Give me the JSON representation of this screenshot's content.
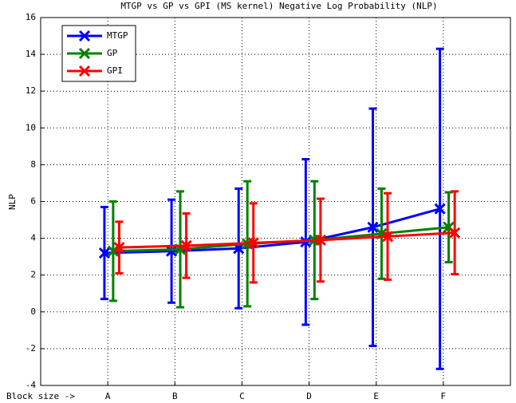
{
  "chart_data": {
    "type": "errorbar-line",
    "title": "MTGP vs GP vs GPI (MS kernel) Negative Log Probability (NLP)",
    "y_label": "NLP",
    "xlim": [
      0,
      7
    ],
    "xticks": [
      {
        "value": 0,
        "label": "Block size ->"
      },
      {
        "value": 1,
        "label": "A"
      },
      {
        "value": 2,
        "label": "B"
      },
      {
        "value": 3,
        "label": "C"
      },
      {
        "value": 4,
        "label": "D"
      },
      {
        "value": 5,
        "label": "E"
      },
      {
        "value": 6,
        "label": "F"
      }
    ],
    "ylim": [
      -4,
      16
    ],
    "yticks": [
      -4,
      -2,
      0,
      2,
      4,
      6,
      8,
      10,
      12,
      14,
      16
    ],
    "grid": true,
    "legend": "upper-left",
    "series": [
      {
        "name": "MTGP",
        "color": "#0000ff",
        "x": [
          0.95,
          1.95,
          2.95,
          3.95,
          4.95,
          5.95
        ],
        "values": [
          3.2,
          3.3,
          3.45,
          3.8,
          4.6,
          5.6
        ],
        "errors": [
          2.5,
          2.8,
          3.25,
          4.5,
          6.45,
          8.7
        ]
      },
      {
        "name": "GP",
        "color": "#008000",
        "x": [
          1.08,
          2.08,
          3.08,
          4.08,
          5.08,
          6.08
        ],
        "values": [
          3.3,
          3.4,
          3.7,
          3.9,
          4.25,
          4.6
        ],
        "errors": [
          2.7,
          3.15,
          3.4,
          3.2,
          2.45,
          1.9
        ]
      },
      {
        "name": "GPI",
        "color": "#ff0000",
        "x": [
          1.17,
          2.17,
          3.17,
          4.17,
          5.17,
          6.17
        ],
        "values": [
          3.5,
          3.6,
          3.75,
          3.9,
          4.1,
          4.3
        ],
        "errors": [
          1.4,
          1.75,
          2.15,
          2.25,
          2.35,
          2.25
        ]
      }
    ]
  }
}
